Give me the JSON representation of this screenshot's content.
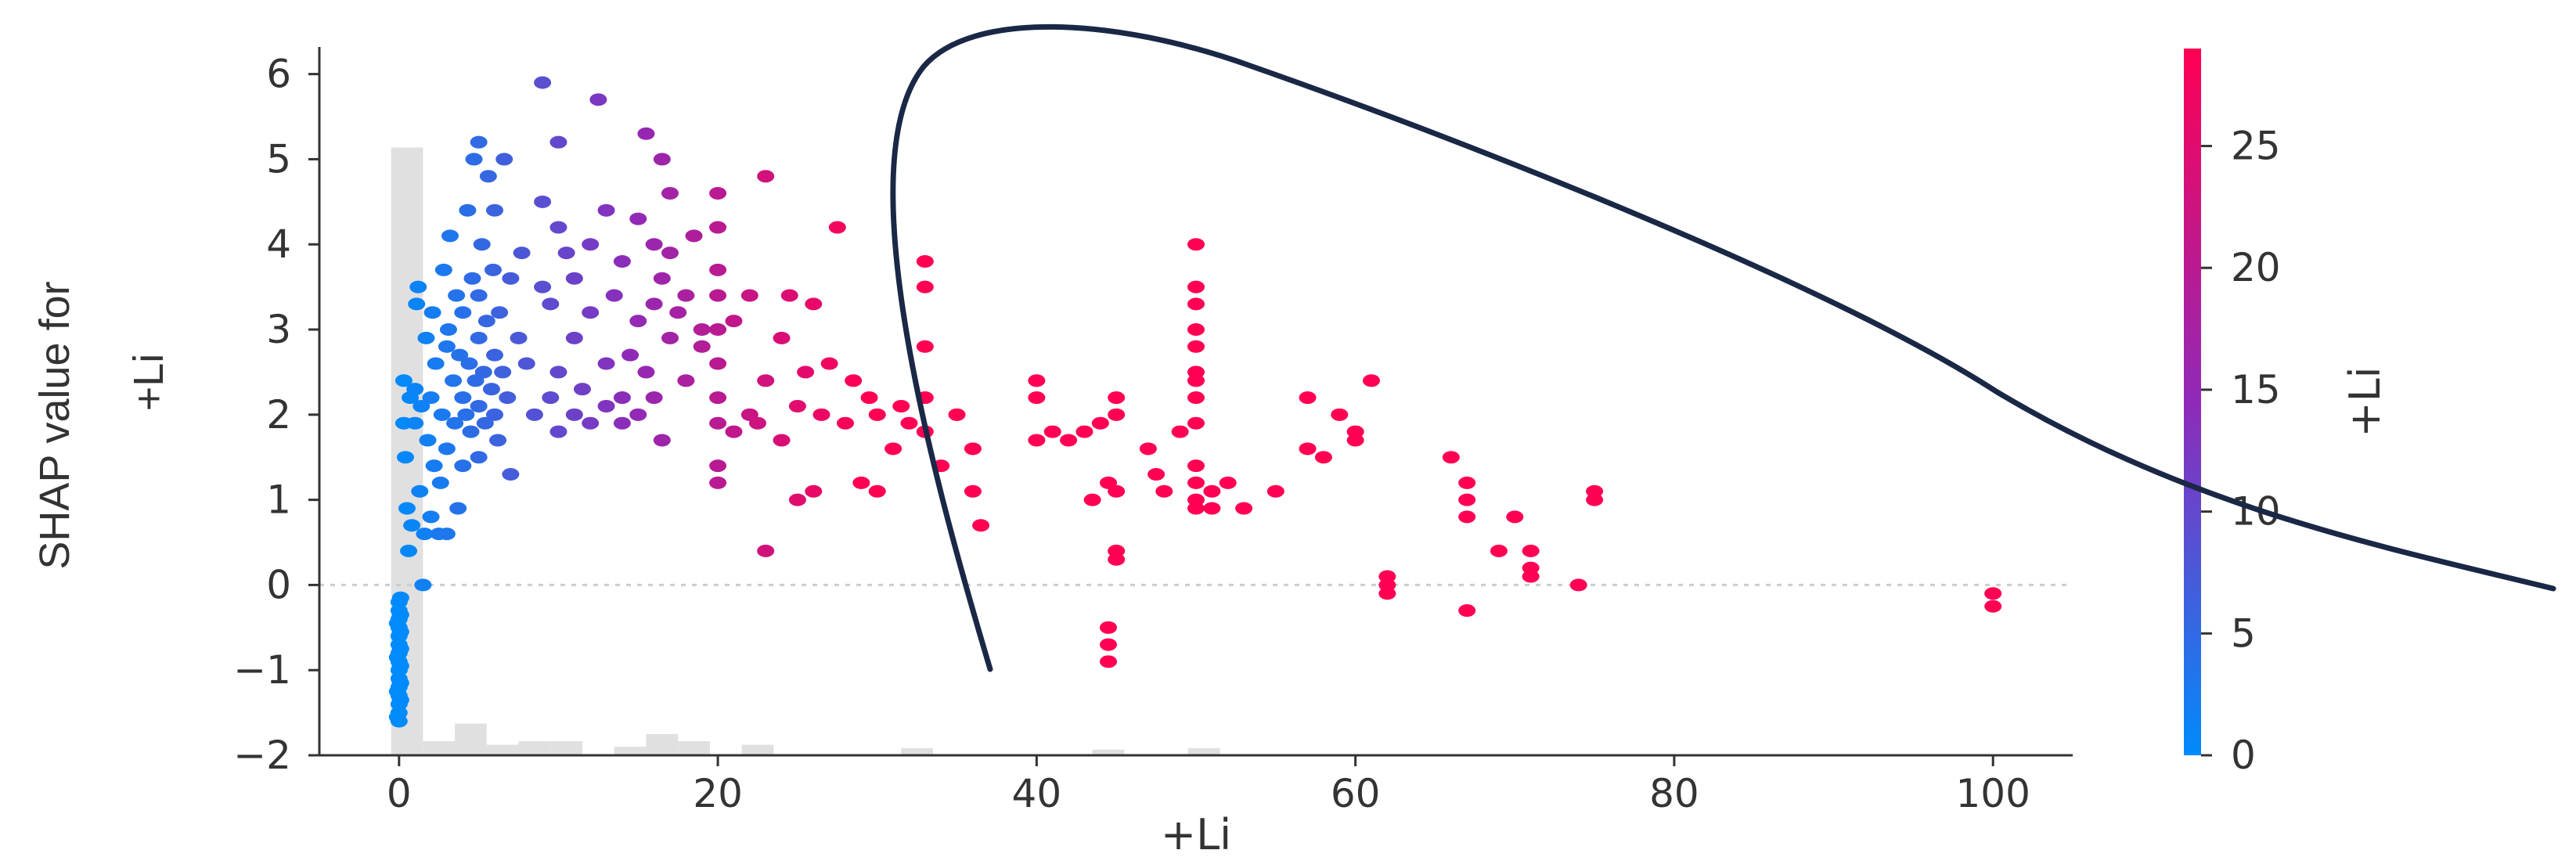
{
  "chart_data": {
    "type": "scatter",
    "title": "",
    "xlabel": "+Li",
    "ylabel": [
      "SHAP value for",
      "+Li"
    ],
    "colorbar_label": "+Li",
    "xlim": [
      -5,
      105
    ],
    "ylim": [
      -2,
      6.3
    ],
    "x_ticks": [
      0,
      20,
      40,
      60,
      80,
      100
    ],
    "y_ticks": [
      -2,
      -1,
      0,
      1,
      2,
      3,
      4,
      5,
      6
    ],
    "colorbar": {
      "range": [
        0,
        29
      ],
      "ticks": [
        0,
        5,
        10,
        15,
        20,
        25
      ],
      "low_color": "#008bfb",
      "mid_color": "#8f2ab8",
      "high_color": "#ff0052"
    },
    "zero_line": true,
    "histogram": {
      "color": "#e0e0e0",
      "bins": [
        {
          "x0": -0.5,
          "x1": 1.5,
          "h": 0.86
        },
        {
          "x0": 1.5,
          "x1": 3.5,
          "h": 0.02
        },
        {
          "x0": 3.5,
          "x1": 5.5,
          "h": 0.045
        },
        {
          "x0": 5.5,
          "x1": 7.5,
          "h": 0.015
        },
        {
          "x0": 7.5,
          "x1": 9.5,
          "h": 0.02
        },
        {
          "x0": 9.5,
          "x1": 11.5,
          "h": 0.02
        },
        {
          "x0": 13.5,
          "x1": 15.5,
          "h": 0.012
        },
        {
          "x0": 15.5,
          "x1": 17.5,
          "h": 0.03
        },
        {
          "x0": 17.5,
          "x1": 19.5,
          "h": 0.02
        },
        {
          "x0": 21.5,
          "x1": 23.5,
          "h": 0.015
        },
        {
          "x0": 31.5,
          "x1": 33.5,
          "h": 0.01
        },
        {
          "x0": 43.5,
          "x1": 45.5,
          "h": 0.008
        },
        {
          "x0": 49.5,
          "x1": 51.5,
          "h": 0.01
        }
      ]
    },
    "points": [
      [
        0,
        -1.6
      ],
      [
        0,
        -1.5
      ],
      [
        0,
        -1.4
      ],
      [
        0,
        -1.3
      ],
      [
        0,
        -1.2
      ],
      [
        0,
        -1.1
      ],
      [
        0,
        -1.0
      ],
      [
        0,
        -0.9
      ],
      [
        0,
        -0.8
      ],
      [
        0,
        -0.7
      ],
      [
        0,
        -0.6
      ],
      [
        0,
        -0.5
      ],
      [
        0,
        -0.4
      ],
      [
        0,
        -0.3
      ],
      [
        0,
        -0.2
      ],
      [
        0.1,
        -0.15
      ],
      [
        0.1,
        -0.35
      ],
      [
        0.1,
        -0.55
      ],
      [
        0.1,
        -0.75
      ],
      [
        0.1,
        -0.95
      ],
      [
        0.1,
        -1.15
      ],
      [
        0.1,
        -1.35
      ],
      [
        -0.1,
        -0.45
      ],
      [
        -0.1,
        -0.85
      ],
      [
        -0.1,
        -1.25
      ],
      [
        -0.1,
        -1.55
      ],
      [
        0.3,
        1.9
      ],
      [
        0.3,
        2.4
      ],
      [
        0.4,
        1.5
      ],
      [
        0.5,
        0.9
      ],
      [
        0.6,
        0.4
      ],
      [
        0.7,
        2.2
      ],
      [
        0.8,
        0.7
      ],
      [
        1,
        1.9
      ],
      [
        1,
        2.3
      ],
      [
        1.1,
        3.3
      ],
      [
        1.2,
        3.5
      ],
      [
        1.3,
        1.1
      ],
      [
        1.4,
        2.1
      ],
      [
        1.5,
        0
      ],
      [
        1.6,
        0.6
      ],
      [
        1.7,
        2.9
      ],
      [
        1.8,
        1.7
      ],
      [
        2,
        0.8
      ],
      [
        2,
        2.2
      ],
      [
        2.1,
        3.2
      ],
      [
        2.2,
        1.4
      ],
      [
        2.3,
        2.6
      ],
      [
        2.5,
        0.6
      ],
      [
        2.6,
        1.2
      ],
      [
        2.7,
        2.0
      ],
      [
        2.8,
        3.7
      ],
      [
        3,
        0.6
      ],
      [
        3,
        1.6
      ],
      [
        3,
        2.8
      ],
      [
        3.1,
        3.0
      ],
      [
        3.2,
        4.1
      ],
      [
        3.4,
        2.4
      ],
      [
        3.5,
        1.9
      ],
      [
        3.6,
        3.4
      ],
      [
        3.7,
        0.9
      ],
      [
        3.8,
        2.7
      ],
      [
        4,
        1.4
      ],
      [
        4,
        2.2
      ],
      [
        4,
        3.2
      ],
      [
        4.2,
        2.0
      ],
      [
        4.3,
        4.4
      ],
      [
        4.4,
        2.6
      ],
      [
        4.5,
        1.8
      ],
      [
        4.6,
        3.6
      ],
      [
        4.7,
        5.0
      ],
      [
        4.8,
        2.4
      ],
      [
        5,
        1.5
      ],
      [
        5,
        2.1
      ],
      [
        5,
        2.9
      ],
      [
        5,
        3.4
      ],
      [
        5,
        5.2
      ],
      [
        5.2,
        4.0
      ],
      [
        5.3,
        2.5
      ],
      [
        5.4,
        1.9
      ],
      [
        5.5,
        3.1
      ],
      [
        5.6,
        4.8
      ],
      [
        5.8,
        2.3
      ],
      [
        5.9,
        3.7
      ],
      [
        6,
        2.0
      ],
      [
        6,
        2.7
      ],
      [
        6,
        4.4
      ],
      [
        6.2,
        1.7
      ],
      [
        6.3,
        3.2
      ],
      [
        6.5,
        2.5
      ],
      [
        6.6,
        5.0
      ],
      [
        6.8,
        2.2
      ],
      [
        7,
        3.6
      ],
      [
        7,
        1.3
      ],
      [
        7.5,
        2.9
      ],
      [
        7.7,
        3.9
      ],
      [
        8,
        2.6
      ],
      [
        8.5,
        2.0
      ],
      [
        9,
        3.5
      ],
      [
        9,
        4.5
      ],
      [
        9,
        5.9
      ],
      [
        9.5,
        2.2
      ],
      [
        9.5,
        3.3
      ],
      [
        10,
        1.8
      ],
      [
        10,
        2.5
      ],
      [
        10,
        4.2
      ],
      [
        10,
        5.2
      ],
      [
        10.5,
        3.9
      ],
      [
        11,
        2.0
      ],
      [
        11,
        2.9
      ],
      [
        11,
        3.6
      ],
      [
        11.5,
        2.3
      ],
      [
        12,
        1.9
      ],
      [
        12,
        3.2
      ],
      [
        12,
        4.0
      ],
      [
        12.5,
        5.7
      ],
      [
        13,
        2.1
      ],
      [
        13,
        2.6
      ],
      [
        13,
        4.4
      ],
      [
        13.5,
        3.4
      ],
      [
        14,
        1.9
      ],
      [
        14,
        2.2
      ],
      [
        14,
        3.8
      ],
      [
        14.5,
        2.7
      ],
      [
        15,
        2.0
      ],
      [
        15,
        3.1
      ],
      [
        15,
        4.3
      ],
      [
        15.5,
        2.5
      ],
      [
        15.5,
        5.3
      ],
      [
        16,
        3.3
      ],
      [
        16,
        4.0
      ],
      [
        16,
        2.2
      ],
      [
        16.5,
        1.7
      ],
      [
        16.5,
        3.6
      ],
      [
        16.5,
        5.0
      ],
      [
        17,
        2.9
      ],
      [
        17,
        3.9
      ],
      [
        17,
        4.6
      ],
      [
        17.5,
        3.2
      ],
      [
        18,
        3.4
      ],
      [
        18,
        2.4
      ],
      [
        18.5,
        4.1
      ],
      [
        19,
        3.0
      ],
      [
        19,
        2.8
      ],
      [
        20,
        4.6
      ],
      [
        20,
        1.2
      ],
      [
        20,
        1.4
      ],
      [
        20,
        1.9
      ],
      [
        20,
        2.2
      ],
      [
        20,
        2.6
      ],
      [
        20,
        3.0
      ],
      [
        20,
        3.4
      ],
      [
        20,
        3.7
      ],
      [
        20,
        4.2
      ],
      [
        21,
        1.8
      ],
      [
        21,
        3.1
      ],
      [
        22,
        2.0
      ],
      [
        22,
        3.4
      ],
      [
        22.5,
        1.9
      ],
      [
        23,
        4.8
      ],
      [
        23,
        2.4
      ],
      [
        23,
        0.4
      ],
      [
        24,
        1.7
      ],
      [
        24,
        2.9
      ],
      [
        24.5,
        3.4
      ],
      [
        25,
        2.1
      ],
      [
        25,
        1.0
      ],
      [
        25.5,
        2.5
      ],
      [
        26,
        1.1
      ],
      [
        26,
        3.3
      ],
      [
        26.5,
        2.0
      ],
      [
        27,
        2.6
      ],
      [
        27.5,
        4.2
      ],
      [
        28,
        1.9
      ],
      [
        28.5,
        2.4
      ],
      [
        29,
        1.2
      ],
      [
        29.5,
        2.2
      ],
      [
        30,
        2.0
      ],
      [
        30,
        1.1
      ],
      [
        31,
        1.6
      ],
      [
        31.5,
        2.1
      ],
      [
        32,
        1.9
      ],
      [
        33,
        1.8
      ],
      [
        33,
        2.2
      ],
      [
        33,
        2.8
      ],
      [
        33,
        3.5
      ],
      [
        33,
        3.8
      ],
      [
        34,
        1.4
      ],
      [
        35,
        2.0
      ],
      [
        36,
        1.6
      ],
      [
        36,
        1.1
      ],
      [
        36.5,
        0.7
      ],
      [
        40,
        1.7
      ],
      [
        40,
        2.2
      ],
      [
        40,
        2.4
      ],
      [
        41,
        1.8
      ],
      [
        42,
        1.7
      ],
      [
        43,
        1.8
      ],
      [
        44,
        1.9
      ],
      [
        45,
        2.0
      ],
      [
        45,
        2.2
      ],
      [
        43.5,
        1.0
      ],
      [
        44.5,
        1.2
      ],
      [
        45,
        1.1
      ],
      [
        45,
        0.4
      ],
      [
        45,
        0.3
      ],
      [
        44.5,
        -0.5
      ],
      [
        44.5,
        -0.7
      ],
      [
        44.5,
        -0.9
      ],
      [
        47,
        1.6
      ],
      [
        47.5,
        1.3
      ],
      [
        48,
        1.1
      ],
      [
        49,
        1.8
      ],
      [
        50,
        4.0
      ],
      [
        50,
        3.5
      ],
      [
        50,
        3.3
      ],
      [
        50,
        3.0
      ],
      [
        50,
        2.8
      ],
      [
        50,
        2.5
      ],
      [
        50,
        2.4
      ],
      [
        50,
        2.2
      ],
      [
        50,
        1.9
      ],
      [
        50,
        1.4
      ],
      [
        50,
        1.2
      ],
      [
        50,
        1.0
      ],
      [
        50,
        0.9
      ],
      [
        51,
        1.1
      ],
      [
        51,
        0.9
      ],
      [
        52,
        1.2
      ],
      [
        53,
        0.9
      ],
      [
        55,
        1.1
      ],
      [
        57,
        2.2
      ],
      [
        58,
        1.5
      ],
      [
        57,
        1.6
      ],
      [
        59,
        2.0
      ],
      [
        60,
        1.8
      ],
      [
        60,
        1.7
      ],
      [
        61,
        2.4
      ],
      [
        62,
        0.1
      ],
      [
        62,
        0
      ],
      [
        62,
        -0.1
      ],
      [
        66,
        1.5
      ],
      [
        67,
        1.2
      ],
      [
        67,
        1.0
      ],
      [
        67,
        0.8
      ],
      [
        67,
        -0.3
      ],
      [
        69,
        0.4
      ],
      [
        70,
        0.8
      ],
      [
        71,
        0.4
      ],
      [
        71,
        0.2
      ],
      [
        71,
        0.1
      ],
      [
        74,
        0
      ],
      [
        75,
        1.1
      ],
      [
        75,
        1.0
      ],
      [
        100,
        -0.1
      ],
      [
        100,
        -0.25
      ]
    ]
  }
}
